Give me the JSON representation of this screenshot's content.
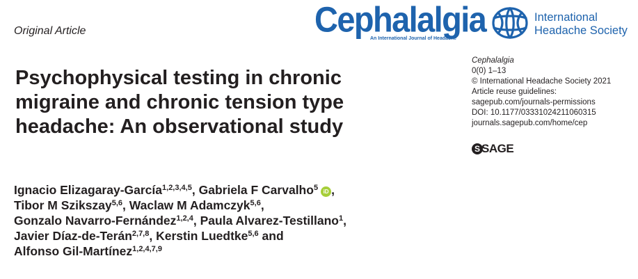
{
  "article_type": "Original Article",
  "journal_logo": {
    "wordmark": "Cephalalgia",
    "tagline": "An International Journal of Headache",
    "color": "#1e63ad"
  },
  "society_logo": {
    "name_line1": "International",
    "name_line2": "Headache Society",
    "icon": "ihs-brain-logo-icon"
  },
  "title_lines": [
    "Psychophysical testing in chronic",
    "migraine and chronic tension type",
    "headache: An observational study"
  ],
  "meta": {
    "journal": "Cephalalgia",
    "issue": "0(0) 1–13",
    "copyright": "© International Headache Society 2021",
    "reuse_1": "Article reuse guidelines:",
    "reuse_2": "sagepub.com/journals-permissions",
    "doi": "DOI: 10.1177/03331024211060315",
    "url": "journals.sagepub.com/home/cep"
  },
  "publisher_logo": {
    "letter": "S",
    "text": "SAGE"
  },
  "authors": {
    "a1": {
      "name": "Ignacio Elizagaray-García",
      "aff": "1,2,3,4,5"
    },
    "a2": {
      "name": "Gabriela F Carvalho",
      "aff": "5"
    },
    "a3": {
      "name": "Tibor M Szikszay",
      "aff": "5,6"
    },
    "a4": {
      "name": "Waclaw M Adamczyk",
      "aff": "5,6"
    },
    "a5": {
      "name": "Gonzalo Navarro-Fernández",
      "aff": "1,2,4"
    },
    "a6": {
      "name": "Paula Alvarez-Testillano",
      "aff": "1"
    },
    "a7": {
      "name": "Javier Díaz-de-Terán",
      "aff": "2,7,8"
    },
    "a8": {
      "name": "Kerstin Luedtke",
      "aff": "5,6"
    },
    "a9": {
      "name": "Alfonso Gil-Martínez",
      "aff": "1,2,4,7,9"
    },
    "sep": ",",
    "and": "and",
    "orcid_label": "iD",
    "orcid_color": "#a6ce39"
  }
}
